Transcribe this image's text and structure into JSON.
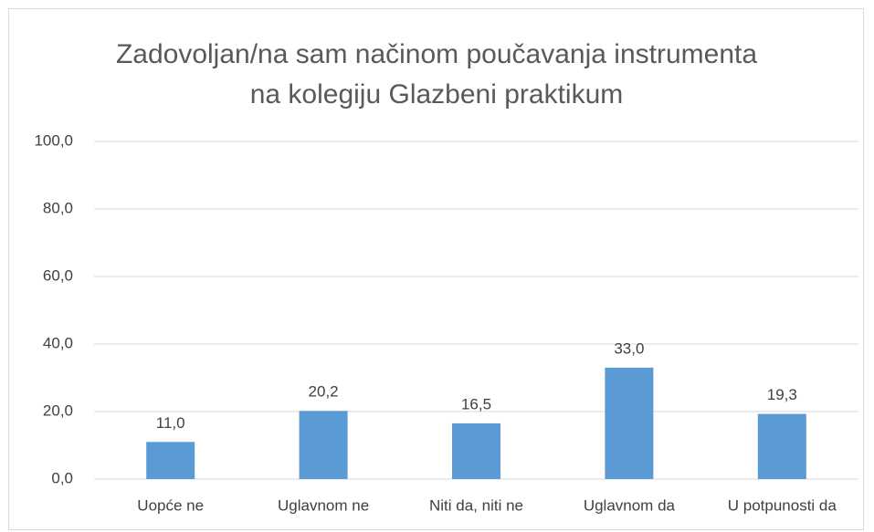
{
  "chart_data": {
    "type": "bar",
    "title": "Zadovoljan/na sam načinom poučavanja instrumenta na kolegiju Glazbeni praktikum",
    "categories": [
      "Uopće ne",
      "Uglavnom ne",
      "Niti da, niti ne",
      "Uglavnom da",
      "U potpunosti da"
    ],
    "values": [
      11.0,
      20.2,
      16.5,
      33.0,
      19.3
    ],
    "value_labels": [
      "11,0",
      "20,2",
      "16,5",
      "33,0",
      "19,3"
    ],
    "color": "#5b9bd5",
    "ylim": [
      0,
      100
    ],
    "yticks": [
      {
        "value": 0,
        "label": "0,0"
      },
      {
        "value": 20,
        "label": "20,0"
      },
      {
        "value": 40,
        "label": "40,0"
      },
      {
        "value": 60,
        "label": "60,0"
      },
      {
        "value": 80,
        "label": "80,0"
      },
      {
        "value": 100,
        "label": "100,0"
      }
    ],
    "grid": true
  }
}
